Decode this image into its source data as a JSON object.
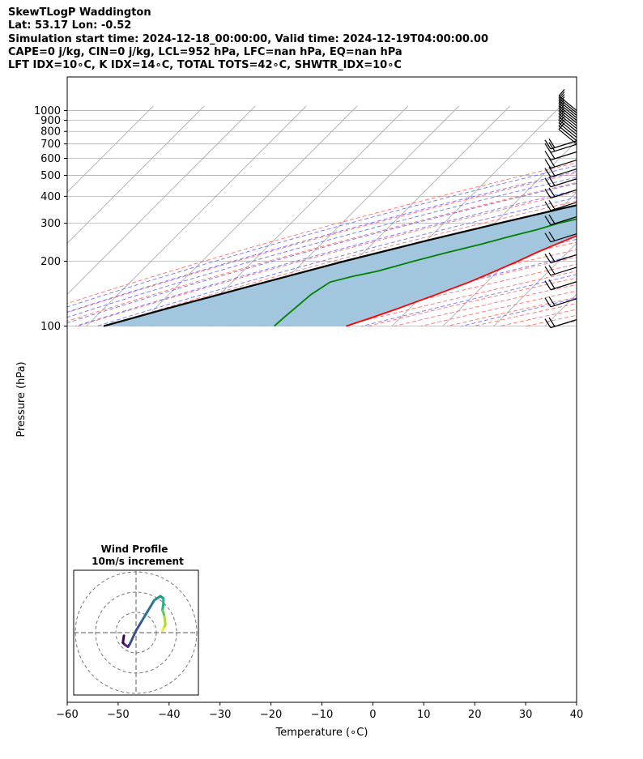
{
  "header": {
    "line1": "SkewTLogP Waddington",
    "line2": "Lat: 53.17   Lon: -0.52",
    "line3": "Simulation start time: 2024-12-18_00:00:00, Valid time: 2024-12-19T04:00:00.00",
    "line4": "CAPE=0 j/kg, CIN=0 j/kg, LCL=952 hPa, LFC=nan hPa, EQ=nan hPa",
    "line5": "LFT IDX=10∘C, K IDX=14∘C, TOTAL TOTS=42∘C, SHWTR_IDX=10∘C"
  },
  "chart_data": {
    "type": "skewt",
    "xlabel": "Temperature (∘C)",
    "ylabel": "Pressure (hPa)",
    "xlim": [
      -60,
      40
    ],
    "ylim": [
      1050,
      100
    ],
    "x_ticks": [
      "−60",
      "−50",
      "−40",
      "−30",
      "−20",
      "−10",
      "0",
      "10",
      "20",
      "30",
      "40"
    ],
    "y_ticks": [
      "1000",
      "900",
      "800",
      "700",
      "600",
      "500",
      "400",
      "300",
      "200",
      "100"
    ],
    "x_tick_values": [
      -60,
      -50,
      -40,
      -30,
      -20,
      -10,
      0,
      10,
      20,
      30,
      40
    ],
    "y_tick_values": [
      1000,
      900,
      800,
      700,
      600,
      500,
      400,
      300,
      200,
      100
    ],
    "grid": true,
    "colors": {
      "temperature": "#ff0000",
      "dewpoint": "#008000",
      "parcel": "#000000",
      "cape_fill": "#a3c6df",
      "dry_adiabat": "#ff6666",
      "moist_adiabat": "#6666ff",
      "mixing_ratio": "#a050c8",
      "isotherm": "#a8a8a8"
    },
    "series": [
      {
        "key": "temperature",
        "p": [
          985,
          960,
          930,
          900,
          860,
          800,
          750,
          700,
          650,
          600,
          550,
          500,
          460,
          420,
          390,
          360,
          340,
          320,
          300,
          280,
          260,
          240,
          220,
          200,
          180,
          160,
          140,
          120,
          110,
          100
        ],
        "t": [
          6.4,
          5.8,
          4.6,
          3.3,
          1.7,
          -0.8,
          -3.1,
          -5.6,
          -7.9,
          -10.0,
          -13.8,
          -18.2,
          -22.3,
          -27.6,
          -31.7,
          -37.0,
          -40.3,
          -43.5,
          -46.4,
          -49.7,
          -51.7,
          -53.8,
          -56.0,
          -58.0,
          -60.5,
          -63.5,
          -67.5,
          -72.5,
          -75.5,
          -79.0
        ]
      },
      {
        "key": "dewpoint",
        "p": [
          985,
          960,
          930,
          900,
          860,
          800,
          750,
          700,
          650,
          600,
          550,
          500,
          470,
          440,
          400,
          360,
          340,
          320,
          300,
          280,
          260,
          240,
          220,
          200,
          180,
          170,
          160,
          140,
          120,
          110,
          100
        ],
        "t": [
          4.1,
          2.3,
          -0.6,
          -2.2,
          -4.4,
          -7.4,
          -10.4,
          -13.6,
          -16.2,
          -19.1,
          -22.6,
          -26.1,
          -29.8,
          -34.7,
          -39.9,
          -45.9,
          -48.4,
          -53.5,
          -57.5,
          -60.5,
          -64.6,
          -68.5,
          -73.5,
          -78.5,
          -83.6,
          -87.5,
          -90.8,
          -92.1,
          -92.6,
          -92.9,
          -93.1
        ]
      },
      {
        "key": "parcel",
        "p": [
          985,
          952,
          900,
          850,
          800,
          750,
          700,
          650,
          600,
          550,
          500,
          450,
          400,
          350,
          300,
          250,
          200,
          150,
          120,
          100
        ],
        "t": [
          6.4,
          3.2,
          0.1,
          -3.4,
          -7.0,
          -10.9,
          -15.2,
          -19.9,
          -25.0,
          -30.7,
          -36.9,
          -43.8,
          -51.5,
          -59.9,
          -69.1,
          -79.8,
          -92.1,
          -106.8,
          -117.9,
          -126.6
        ]
      }
    ],
    "hodograph": {
      "title": "Wind Profile",
      "subtitle": "10m/s increment",
      "ring_step_ms": 10,
      "u": [
        -6,
        -6.5,
        -5.5,
        -4,
        -3,
        0,
        3,
        6,
        9,
        12,
        13.5,
        13.5,
        13,
        13.5,
        14,
        14.5,
        13.5,
        13
      ],
      "v": [
        -1.5,
        -5,
        -6,
        -7,
        -5.5,
        1,
        6,
        11,
        16,
        18,
        17,
        14,
        11,
        10,
        8,
        4,
        2,
        1
      ]
    },
    "wind_barbs": {
      "pressures": [
        1000,
        975,
        950,
        925,
        900,
        875,
        850,
        825,
        800,
        775,
        750,
        725,
        700,
        675,
        650,
        600,
        550,
        500,
        450,
        400,
        350,
        300,
        250,
        200,
        175,
        150,
        125,
        100
      ]
    }
  }
}
